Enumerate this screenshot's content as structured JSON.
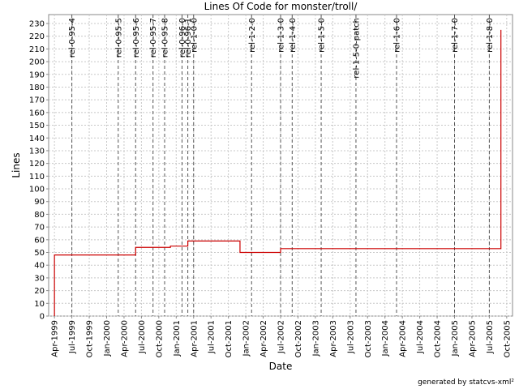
{
  "chart_data": {
    "type": "line",
    "step": true,
    "title": "Lines Of Code for monster/troll/",
    "x_label": "Date",
    "y_label": "Lines",
    "footer": "generated by statcvs-xml²",
    "x": [
      "1999-04",
      "1999-04",
      "2000-06",
      "2000-12",
      "2001-03",
      "2001-12",
      "2002-07",
      "2005-09"
    ],
    "series": [
      {
        "name": "Lines",
        "color": "#cc0000",
        "values": [
          0,
          48,
          54,
          55,
          59,
          50,
          53,
          225
        ]
      }
    ],
    "xlim": [
      "1999-03",
      "2005-11"
    ],
    "xticks": [
      {
        "value": "1999-04",
        "label": "Apr-1999"
      },
      {
        "value": "1999-07",
        "label": "Jul-1999"
      },
      {
        "value": "1999-10",
        "label": "Oct-1999"
      },
      {
        "value": "2000-01",
        "label": "Jan-2000"
      },
      {
        "value": "2000-04",
        "label": "Apr-2000"
      },
      {
        "value": "2000-07",
        "label": "Jul-2000"
      },
      {
        "value": "2000-10",
        "label": "Oct-2000"
      },
      {
        "value": "2001-01",
        "label": "Jan-2001"
      },
      {
        "value": "2001-04",
        "label": "Apr-2001"
      },
      {
        "value": "2001-07",
        "label": "Jul-2001"
      },
      {
        "value": "2001-10",
        "label": "Oct-2001"
      },
      {
        "value": "2002-01",
        "label": "Jan-2002"
      },
      {
        "value": "2002-04",
        "label": "Apr-2002"
      },
      {
        "value": "2002-07",
        "label": "Jul-2002"
      },
      {
        "value": "2002-10",
        "label": "Oct-2002"
      },
      {
        "value": "2003-01",
        "label": "Jan-2003"
      },
      {
        "value": "2003-04",
        "label": "Apr-2003"
      },
      {
        "value": "2003-07",
        "label": "Jul-2003"
      },
      {
        "value": "2003-10",
        "label": "Oct-2003"
      },
      {
        "value": "2004-01",
        "label": "Jan-2004"
      },
      {
        "value": "2004-04",
        "label": "Apr-2004"
      },
      {
        "value": "2004-07",
        "label": "Jul-2004"
      },
      {
        "value": "2004-10",
        "label": "Oct-2004"
      },
      {
        "value": "2005-01",
        "label": "Jan-2005"
      },
      {
        "value": "2005-04",
        "label": "Apr-2005"
      },
      {
        "value": "2005-07",
        "label": "Jul-2005"
      },
      {
        "value": "2005-10",
        "label": "Oct-2005"
      }
    ],
    "ylim": [
      0,
      237
    ],
    "yticks": [
      0,
      10,
      20,
      30,
      40,
      50,
      60,
      70,
      80,
      90,
      100,
      110,
      120,
      130,
      140,
      150,
      160,
      170,
      180,
      190,
      200,
      210,
      220,
      230
    ],
    "grid": true,
    "markers": [
      {
        "name": "rel-0-95-4",
        "x": "1999-07"
      },
      {
        "name": "rel-0-95-5",
        "x": "2000-03"
      },
      {
        "name": "rel-0-95-6",
        "x": "2000-06"
      },
      {
        "name": "rel-0-95-7",
        "x": "2000-09"
      },
      {
        "name": "rel-0-95-8",
        "x": "2000-11"
      },
      {
        "name": "rel-0-96-0",
        "x": "2001-02"
      },
      {
        "name": "rel-0-96-1",
        "x": "2001-03"
      },
      {
        "name": "rel-1-0-0",
        "x": "2001-04"
      },
      {
        "name": "rel-1-2-0",
        "x": "2002-02"
      },
      {
        "name": "rel-1-3-0",
        "x": "2002-07"
      },
      {
        "name": "rel-1-4-0",
        "x": "2002-09"
      },
      {
        "name": "rel-1-5-0",
        "x": "2003-02"
      },
      {
        "name": "rel-1-5-0-patch",
        "x": "2003-08"
      },
      {
        "name": "rel-1-6-0",
        "x": "2004-03"
      },
      {
        "name": "rel-1-7-0",
        "x": "2005-01"
      },
      {
        "name": "rel-1-8-0",
        "x": "2005-07"
      }
    ]
  }
}
